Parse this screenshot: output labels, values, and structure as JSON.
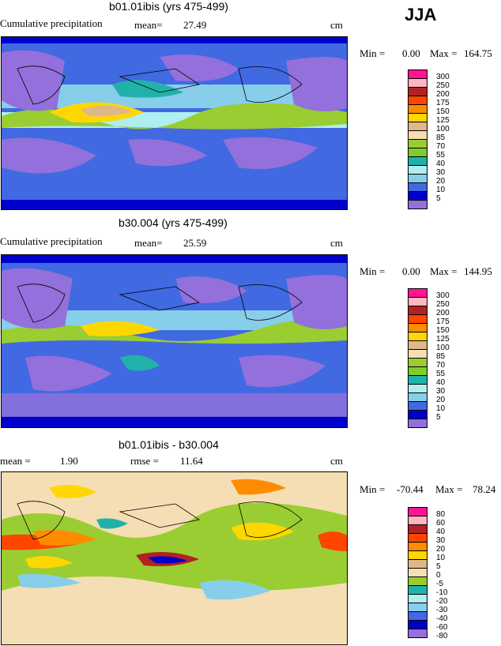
{
  "season": "JJA",
  "panels": [
    {
      "title": "b01.01ibis (yrs 475-499)",
      "left_label": "Cumulative precipitation",
      "mean_label": "mean=",
      "mean_value": "27.49",
      "unit": "cm",
      "min_label": "Min =",
      "min_value": "0.00",
      "max_label": "Max =",
      "max_value": "164.75"
    },
    {
      "title": "b30.004 (yrs 475-499)",
      "left_label": "Cumulative precipitation",
      "mean_label": "mean=",
      "mean_value": "25.59",
      "unit": "cm",
      "min_label": "Min =",
      "min_value": "0.00",
      "max_label": "Max =",
      "max_value": "144.95"
    },
    {
      "title": "b01.01ibis - b30.004",
      "mean_label": "mean =",
      "mean_value": "1.90",
      "rmse_label": "rmse =",
      "rmse_value": "11.64",
      "unit": "cm",
      "min_label": "Min =",
      "min_value": "-70.44",
      "max_label": "Max =",
      "max_value": "78.24"
    }
  ],
  "colorbar_precip": {
    "labels": [
      "300",
      "250",
      "200",
      "175",
      "150",
      "125",
      "100",
      "85",
      "70",
      "55",
      "40",
      "30",
      "20",
      "10",
      "5"
    ],
    "colors": [
      "#ff1493",
      "#ffb6c1",
      "#b22222",
      "#ff4500",
      "#ff8c00",
      "#ffd700",
      "#deb887",
      "#f5deb3",
      "#9acd32",
      "#7fcc2e",
      "#20b2aa",
      "#afeeee",
      "#87ceeb",
      "#4169e1",
      "#0000cd",
      "#9370db"
    ]
  },
  "colorbar_diff": {
    "labels": [
      "80",
      "60",
      "40",
      "30",
      "20",
      "10",
      "5",
      "0",
      "-5",
      "-10",
      "-20",
      "-30",
      "-40",
      "-60",
      "-80"
    ],
    "colors": [
      "#ff1493",
      "#ffb6c1",
      "#b22222",
      "#ff4500",
      "#ff8c00",
      "#ffd700",
      "#deb887",
      "#f5deb3",
      "#9acd32",
      "#20b2aa",
      "#afeeee",
      "#87ceeb",
      "#4169e1",
      "#0000cd",
      "#9370db"
    ]
  }
}
